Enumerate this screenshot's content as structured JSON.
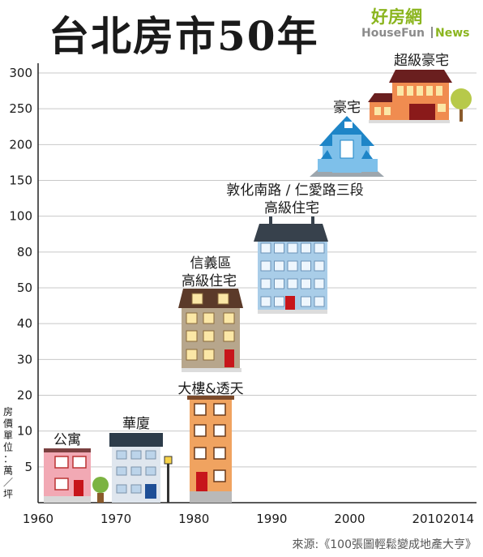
{
  "title": "台北房市50年",
  "brand": {
    "name": "好房網",
    "sub1": "HouseFun",
    "sub2": "News"
  },
  "source": "來源:《100張圖輕鬆變成地產大亨》",
  "ylabel_chars": [
    "房",
    "價",
    "單",
    "位",
    "：",
    "萬",
    "／",
    "坪"
  ],
  "chart_data": {
    "type": "bar",
    "title": "台北房市50年",
    "ylabel": "房價單位：萬／坪",
    "x_ticks": [
      "1960",
      "1970",
      "1980",
      "1990",
      "2000",
      "2010",
      "2014"
    ],
    "y_ticks": [
      "5",
      "10",
      "20",
      "30",
      "40",
      "50",
      "80",
      "100",
      "150",
      "200",
      "250",
      "300"
    ],
    "y_scale": "non-linear (ranked ticks)",
    "grid": true,
    "marks": [
      {
        "label": "公寓",
        "x_start": 1960,
        "x_end": 1967,
        "y": 5,
        "color": "#f2a9b4"
      },
      {
        "label": "華廈",
        "x_start": 1970,
        "x_end": 1977,
        "y": 10,
        "color": "#dfe6ee"
      },
      {
        "label": "大樓&透天",
        "x_start": 1982,
        "x_end": 1988,
        "y": 20,
        "color": "#f0a360"
      },
      {
        "label": "信義區 高級住宅",
        "x_start": 1981,
        "x_end": 1988,
        "y": 50,
        "color": "#b7a68c"
      },
      {
        "label": "敦化南路／仁愛路三段 高級住宅",
        "x_start": 1990,
        "x_end": 1999,
        "y": 100,
        "color": "#a9cde8"
      },
      {
        "label": "豪宅",
        "x_start": 2002,
        "x_end": 2006,
        "y": 250,
        "color": "#7ec0ea"
      },
      {
        "label": "超級豪宅",
        "x_start": 2006,
        "x_end": 2014,
        "y": 300,
        "color": "#f08c50"
      }
    ]
  },
  "houses": [
    {
      "lines": [
        "公寓"
      ]
    },
    {
      "lines": [
        "華廈"
      ]
    },
    {
      "lines": [
        "大樓&透天"
      ]
    },
    {
      "lines": [
        "信義區",
        "高級住宅"
      ]
    },
    {
      "lines": [
        "敦化南路 / 仁愛路三段",
        "高級住宅"
      ]
    },
    {
      "lines": [
        "豪宅"
      ]
    },
    {
      "lines": [
        "超級豪宅"
      ]
    }
  ]
}
